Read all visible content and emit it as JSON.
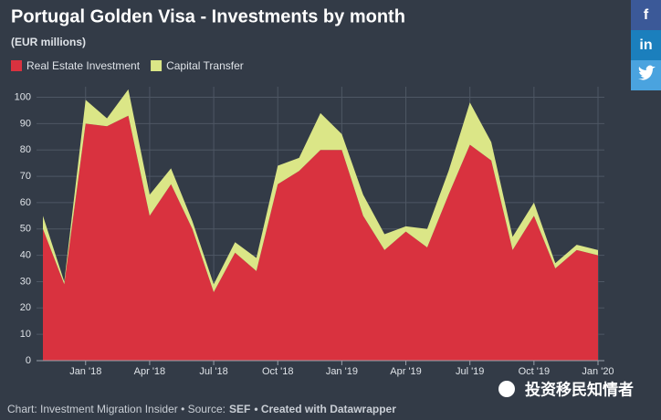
{
  "chart_data": {
    "type": "stacked_area",
    "title": "Portugal Golden Visa - Investments by month",
    "subtitle": "(EUR millions)",
    "categories": [
      null,
      null,
      "Jan '18",
      null,
      null,
      "Apr '18",
      null,
      null,
      "Jul '18",
      null,
      null,
      "Oct '18",
      null,
      null,
      "Jan '19",
      null,
      null,
      "Apr '19",
      null,
      null,
      "Jul '19",
      null,
      null,
      "Oct '19",
      null,
      null,
      "Jan '20"
    ],
    "series": [
      {
        "name": "Real Estate Investment",
        "color": "#d9323f",
        "values": [
          50,
          29,
          90,
          89,
          93,
          55,
          67,
          50,
          26,
          41,
          34,
          67,
          72,
          80,
          80,
          55,
          42,
          49,
          43,
          63,
          82,
          76,
          42,
          55,
          35,
          42,
          40
        ]
      },
      {
        "name": "Capital Transfer",
        "color": "#dbe687",
        "values": [
          5,
          1,
          9,
          3,
          10,
          8,
          6,
          3,
          3,
          4,
          5,
          7,
          5,
          14,
          6,
          8,
          6,
          2,
          7,
          9,
          16,
          7,
          5,
          5,
          2,
          2,
          2
        ]
      }
    ],
    "ylim": [
      0,
      104
    ],
    "yticks": [
      0,
      10,
      20,
      30,
      40,
      50,
      60,
      70,
      80,
      90,
      100
    ],
    "grid": true,
    "footer": {
      "prefix": "Chart: Investment Migration Insider • Source:",
      "source": "SEF",
      "credit": "• Created with Datawrapper"
    },
    "watermark": "投资移民知情者",
    "share_buttons": [
      "f",
      "in"
    ]
  }
}
